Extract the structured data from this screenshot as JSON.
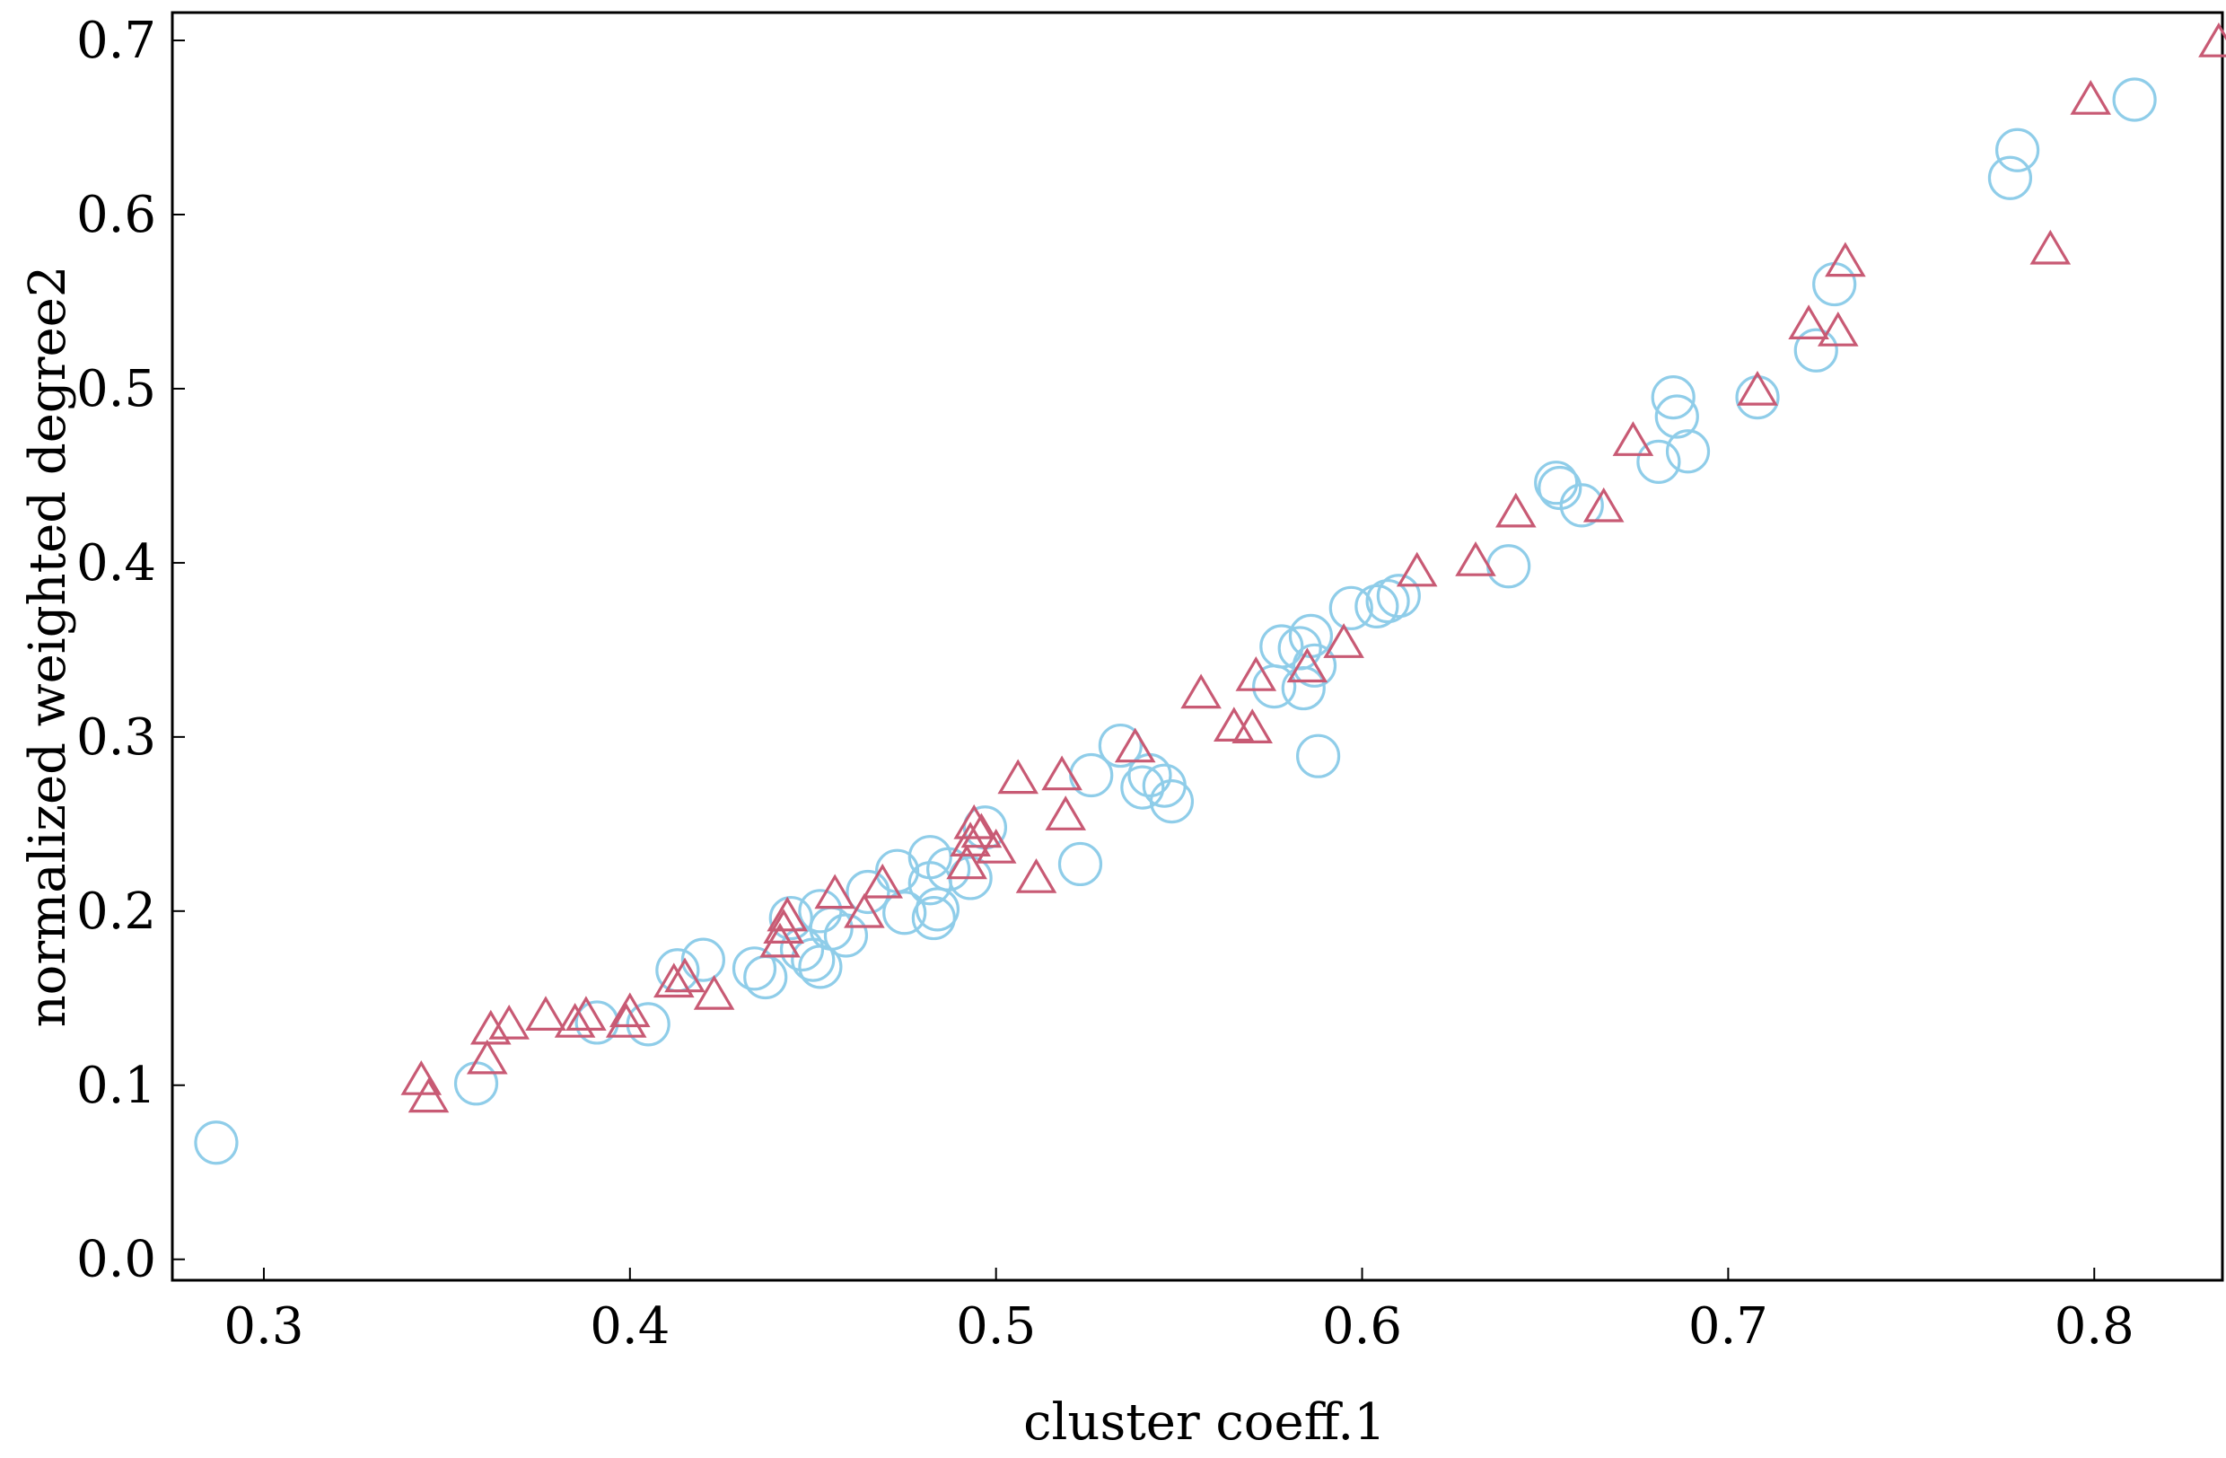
{
  "chart_data": {
    "type": "scatter",
    "title": "",
    "xlabel": "cluster coeff.1",
    "ylabel": "normalized weighted degree2",
    "xlim": [
      0.275,
      0.835
    ],
    "ylim": [
      -0.012,
      0.716
    ],
    "xticks": [
      "0.3",
      "0.4",
      "0.5",
      "0.6",
      "0.7",
      "0.8"
    ],
    "xtick_values": [
      0.3,
      0.4,
      0.5,
      0.6,
      0.7,
      0.8
    ],
    "yticks": [
      "0.0",
      "0.1",
      "0.2",
      "0.3",
      "0.4",
      "0.5",
      "0.6",
      "0.7"
    ],
    "ytick_values": [
      0.0,
      0.1,
      0.2,
      0.3,
      0.4,
      0.5,
      0.6,
      0.7
    ],
    "grid": false,
    "legend": "none",
    "series": [
      {
        "marker": "circle",
        "color": "#8fcde9",
        "points": [
          [
            0.287,
            0.067
          ],
          [
            0.358,
            0.101
          ],
          [
            0.391,
            0.136
          ],
          [
            0.405,
            0.135
          ],
          [
            0.413,
            0.166
          ],
          [
            0.42,
            0.172
          ],
          [
            0.434,
            0.167
          ],
          [
            0.437,
            0.162
          ],
          [
            0.444,
            0.196
          ],
          [
            0.447,
            0.178
          ],
          [
            0.45,
            0.172
          ],
          [
            0.452,
            0.2
          ],
          [
            0.452,
            0.168
          ],
          [
            0.455,
            0.19
          ],
          [
            0.459,
            0.186
          ],
          [
            0.465,
            0.211
          ],
          [
            0.473,
            0.223
          ],
          [
            0.475,
            0.199
          ],
          [
            0.482,
            0.231
          ],
          [
            0.482,
            0.216
          ],
          [
            0.483,
            0.196
          ],
          [
            0.484,
            0.201
          ],
          [
            0.487,
            0.224
          ],
          [
            0.493,
            0.219
          ],
          [
            0.497,
            0.248
          ],
          [
            0.523,
            0.227
          ],
          [
            0.526,
            0.278
          ],
          [
            0.534,
            0.295
          ],
          [
            0.54,
            0.271
          ],
          [
            0.542,
            0.278
          ],
          [
            0.546,
            0.272
          ],
          [
            0.548,
            0.263
          ],
          [
            0.576,
            0.329
          ],
          [
            0.578,
            0.352
          ],
          [
            0.583,
            0.351
          ],
          [
            0.584,
            0.328
          ],
          [
            0.586,
            0.358
          ],
          [
            0.587,
            0.341
          ],
          [
            0.588,
            0.289
          ],
          [
            0.597,
            0.374
          ],
          [
            0.604,
            0.375
          ],
          [
            0.607,
            0.378
          ],
          [
            0.61,
            0.381
          ],
          [
            0.64,
            0.398
          ],
          [
            0.653,
            0.446
          ],
          [
            0.654,
            0.443
          ],
          [
            0.66,
            0.433
          ],
          [
            0.681,
            0.458
          ],
          [
            0.685,
            0.495
          ],
          [
            0.686,
            0.484
          ],
          [
            0.689,
            0.464
          ],
          [
            0.708,
            0.495
          ],
          [
            0.724,
            0.522
          ],
          [
            0.729,
            0.56
          ],
          [
            0.777,
            0.621
          ],
          [
            0.779,
            0.637
          ],
          [
            0.811,
            0.666
          ]
        ]
      },
      {
        "marker": "triangle",
        "color": "#c85a74",
        "points": [
          [
            0.343,
            0.101
          ],
          [
            0.345,
            0.091
          ],
          [
            0.361,
            0.113
          ],
          [
            0.362,
            0.13
          ],
          [
            0.367,
            0.133
          ],
          [
            0.377,
            0.138
          ],
          [
            0.385,
            0.134
          ],
          [
            0.388,
            0.138
          ],
          [
            0.399,
            0.134
          ],
          [
            0.4,
            0.14
          ],
          [
            0.412,
            0.157
          ],
          [
            0.415,
            0.16
          ],
          [
            0.423,
            0.15
          ],
          [
            0.441,
            0.18
          ],
          [
            0.442,
            0.188
          ],
          [
            0.443,
            0.195
          ],
          [
            0.456,
            0.208
          ],
          [
            0.464,
            0.197
          ],
          [
            0.469,
            0.214
          ],
          [
            0.492,
            0.225
          ],
          [
            0.493,
            0.238
          ],
          [
            0.494,
            0.248
          ],
          [
            0.496,
            0.243
          ],
          [
            0.5,
            0.234
          ],
          [
            0.506,
            0.274
          ],
          [
            0.511,
            0.217
          ],
          [
            0.518,
            0.276
          ],
          [
            0.519,
            0.253
          ],
          [
            0.538,
            0.292
          ],
          [
            0.556,
            0.323
          ],
          [
            0.565,
            0.304
          ],
          [
            0.57,
            0.303
          ],
          [
            0.571,
            0.333
          ],
          [
            0.585,
            0.338
          ],
          [
            0.595,
            0.352
          ],
          [
            0.615,
            0.393
          ],
          [
            0.631,
            0.399
          ],
          [
            0.642,
            0.427
          ],
          [
            0.666,
            0.43
          ],
          [
            0.674,
            0.468
          ],
          [
            0.708,
            0.497
          ],
          [
            0.722,
            0.535
          ],
          [
            0.73,
            0.531
          ],
          [
            0.732,
            0.571
          ],
          [
            0.788,
            0.578
          ],
          [
            0.799,
            0.664
          ],
          [
            0.834,
            0.697
          ]
        ]
      }
    ]
  }
}
